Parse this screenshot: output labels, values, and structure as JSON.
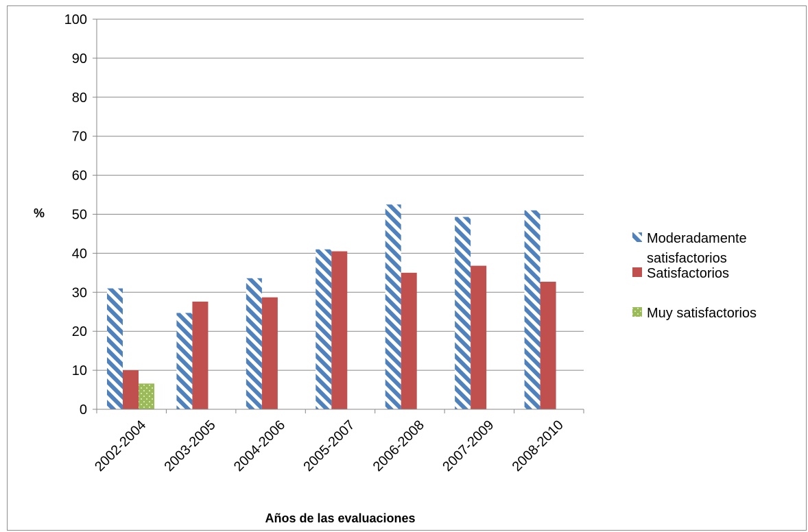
{
  "chart_data": {
    "type": "bar",
    "title": "",
    "xlabel": "Años de las evaluaciones",
    "ylabel": "%",
    "ylim": [
      0,
      100
    ],
    "yticks": [
      0,
      10,
      20,
      30,
      40,
      50,
      60,
      70,
      80,
      90,
      100
    ],
    "grid": true,
    "legend_position": "right",
    "categories": [
      "2002-2004",
      "2003-2005",
      "2004-2006",
      "2005-2007",
      "2006-2008",
      "2007-2009",
      "2008-2010"
    ],
    "series": [
      {
        "name": "Moderadamente satisfactorios",
        "legend_lines": [
          "Moderadamente",
          "satisfactorios"
        ],
        "color": "#4f81bd",
        "pattern": "diagonal-stripes",
        "values": [
          31,
          24.7,
          33.6,
          41,
          52.5,
          49.3,
          51
        ]
      },
      {
        "name": "Satisfactorios",
        "legend_lines": [
          "Satisfactorios"
        ],
        "color": "#c0504d",
        "pattern": "solid",
        "values": [
          10,
          27.6,
          28.7,
          40.5,
          35,
          36.8,
          32.7
        ]
      },
      {
        "name": "Muy satisfactorios",
        "legend_lines": [
          "Muy satisfactorios"
        ],
        "color": "#9bbb59",
        "pattern": "dots",
        "values": [
          6.6,
          0,
          0,
          0,
          0,
          0,
          0
        ]
      }
    ]
  }
}
